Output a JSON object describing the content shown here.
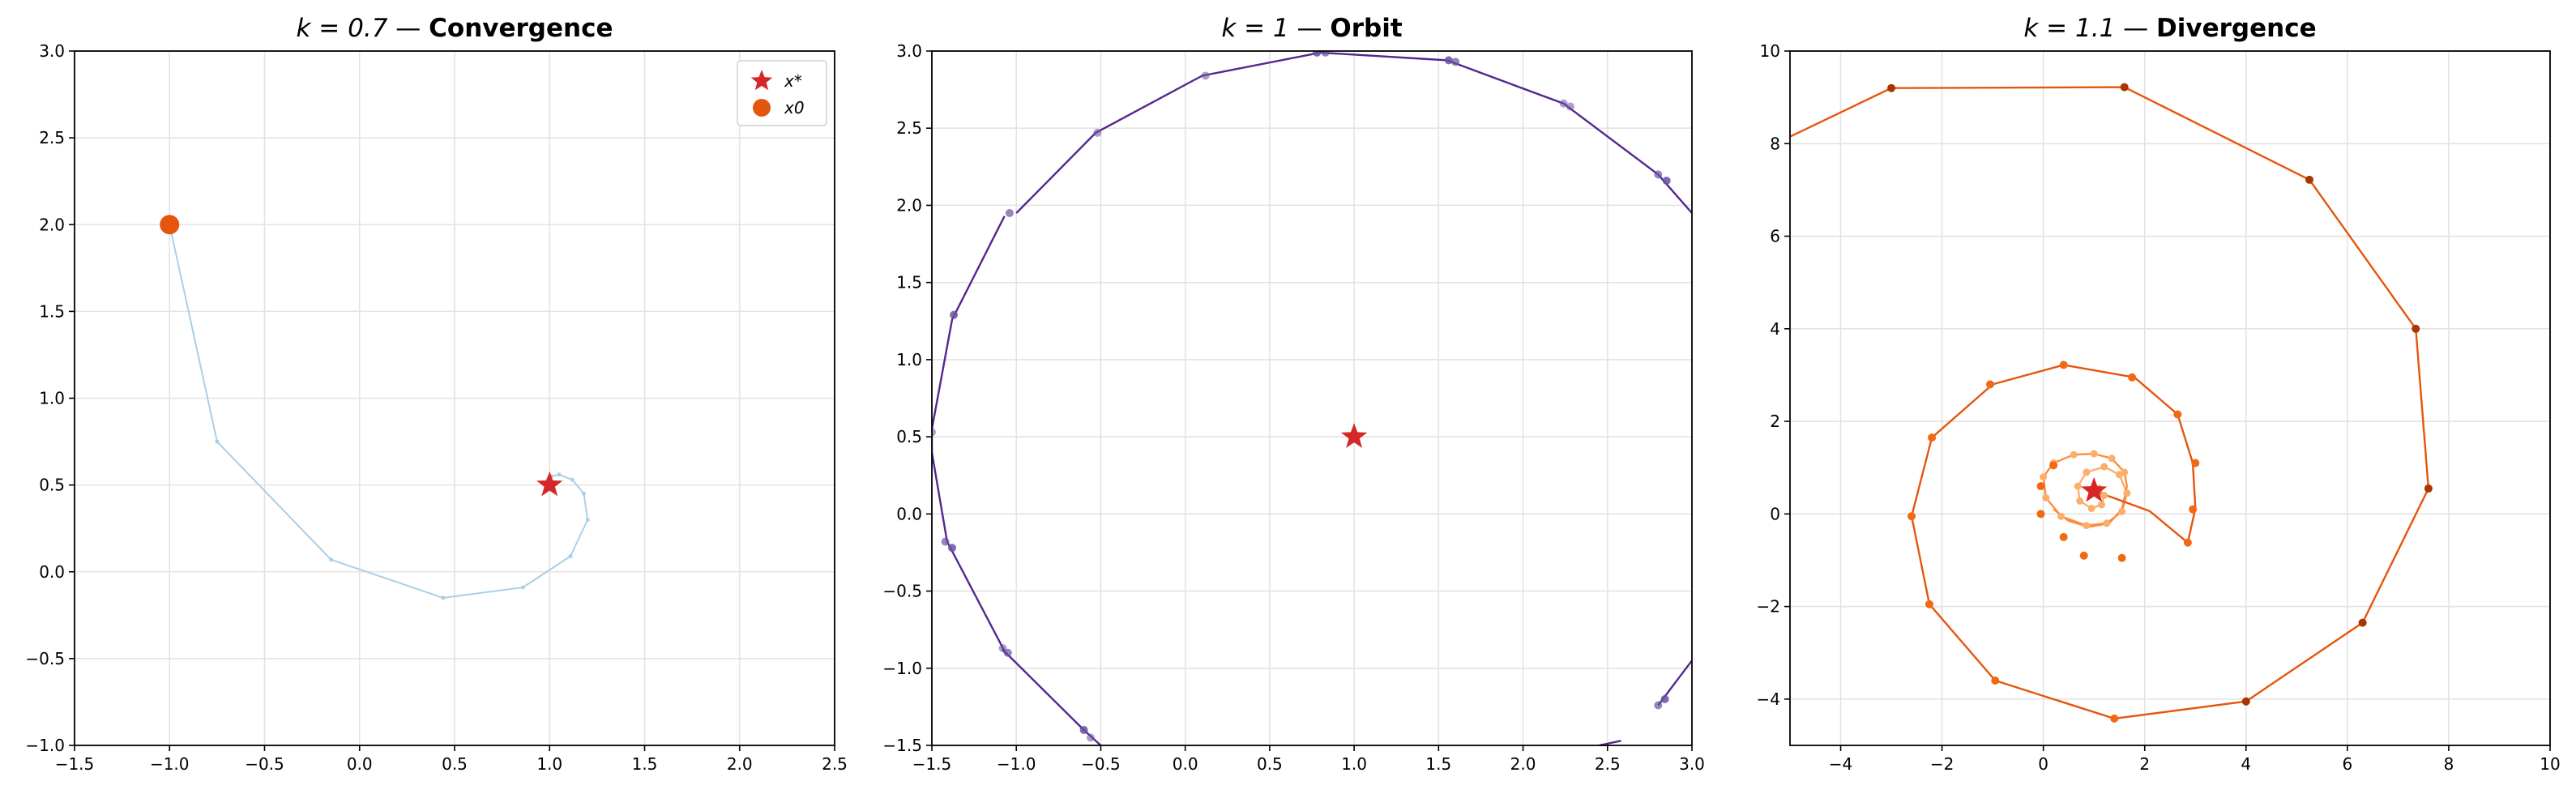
{
  "chart_data": [
    {
      "type": "line",
      "title_math": "k = 0.7",
      "title_sep": " — ",
      "title_bold": "Convergence",
      "xlim": [
        -1.5,
        2.5
      ],
      "ylim": [
        -1.0,
        3.0
      ],
      "xticks": [
        "−1.5",
        "−1.0",
        "−0.5",
        "0.0",
        "0.5",
        "1.0",
        "1.5",
        "2.0",
        "2.5"
      ],
      "yticks": [
        "−1.0",
        "−0.5",
        "0.0",
        "0.5",
        "1.0",
        "1.5",
        "2.0",
        "2.5",
        "3.0"
      ],
      "grid": true,
      "fixed_point": {
        "x": 1.0,
        "y": 0.5
      },
      "start_point": {
        "x": -1.0,
        "y": 2.0
      },
      "legend": {
        "placement": "top-right",
        "star_label": "x*",
        "start_label": "x0"
      },
      "series": [
        {
          "color": "#a9cfe9",
          "points": [
            [
              -1.0,
              2.0
            ],
            [
              -0.75,
              0.75
            ],
            [
              -0.15,
              0.07
            ],
            [
              0.44,
              -0.15
            ],
            [
              0.86,
              -0.09
            ],
            [
              1.11,
              0.09
            ],
            [
              1.2,
              0.3
            ],
            [
              1.18,
              0.45
            ],
            [
              1.12,
              0.53
            ],
            [
              1.05,
              0.56
            ],
            [
              1.01,
              0.55
            ],
            [
              0.99,
              0.53
            ],
            [
              1.0,
              0.5
            ]
          ]
        }
      ],
      "colors": {
        "star": "#d62728",
        "start": "#e6550d"
      }
    },
    {
      "type": "line",
      "title_math": "k = 1",
      "title_sep": " — ",
      "title_bold": "Orbit",
      "xlim": [
        -1.5,
        3.0
      ],
      "ylim": [
        -1.5,
        3.0
      ],
      "xticks": [
        "−1.5",
        "−1.0",
        "−0.5",
        "0.0",
        "0.5",
        "1.0",
        "1.5",
        "2.0",
        "2.5",
        "3.0"
      ],
      "yticks": [
        "−1.5",
        "−1.0",
        "−0.5",
        "0.0",
        "0.5",
        "1.0",
        "1.5",
        "2.0",
        "2.5",
        "3.0"
      ],
      "grid": true,
      "fixed_point": {
        "x": 1.0,
        "y": 0.5
      },
      "series": [
        {
          "color": "#54278f",
          "points": [
            [
              -1.0,
              1.95
            ],
            [
              -0.53,
              2.47
            ],
            [
              0.1,
              2.84
            ],
            [
              0.8,
              2.99
            ],
            [
              1.55,
              2.94
            ],
            [
              2.24,
              2.66
            ],
            [
              2.8,
              2.2
            ],
            [
              3.0,
              1.95
            ]
          ]
        },
        {
          "color": "#54278f",
          "points": [
            [
              -1.07,
              1.93
            ],
            [
              -1.38,
              1.26
            ],
            [
              -1.5,
              0.55
            ],
            [
              -1.5,
              0.4
            ],
            [
              -1.41,
              -0.18
            ],
            [
              -1.39,
              -0.22
            ],
            [
              -1.06,
              -0.91
            ],
            [
              -1.08,
              -0.88
            ],
            [
              -0.6,
              -1.4
            ],
            [
              -0.55,
              -1.45
            ],
            [
              -0.5,
              -1.5
            ]
          ]
        },
        {
          "color": "#54278f",
          "points": [
            [
              2.45,
              -1.5
            ],
            [
              2.58,
              -1.47
            ]
          ]
        },
        {
          "color": "#54278f",
          "points": [
            [
              2.8,
              -1.24
            ],
            [
              3.0,
              -0.95
            ]
          ]
        }
      ],
      "markers": [
        [
          0.12,
          2.84
        ],
        [
          0.83,
          2.99
        ],
        [
          1.56,
          2.94
        ],
        [
          2.24,
          2.66
        ],
        [
          2.8,
          2.2
        ],
        [
          2.85,
          2.16
        ],
        [
          -0.52,
          2.47
        ],
        [
          -1.04,
          1.95
        ],
        [
          -1.37,
          1.29
        ],
        [
          -1.5,
          0.53
        ],
        [
          -1.42,
          -0.18
        ],
        [
          -1.38,
          -0.22
        ],
        [
          -1.08,
          -0.87
        ],
        [
          -1.05,
          -0.9
        ],
        [
          -0.6,
          -1.4
        ],
        [
          -0.56,
          -1.45
        ],
        [
          2.8,
          -1.24
        ],
        [
          2.84,
          -1.2
        ],
        [
          2.28,
          2.64
        ],
        [
          1.6,
          2.93
        ],
        [
          0.78,
          2.99
        ]
      ],
      "colors": {
        "star": "#d62728",
        "marker": "#6a51a3"
      }
    },
    {
      "type": "line",
      "title_math": "k = 1.1",
      "title_sep": " — ",
      "title_bold": "Divergence",
      "xlim": [
        -5,
        10
      ],
      "ylim": [
        -5,
        10
      ],
      "xticks": [
        "−4",
        "−2",
        "0",
        "2",
        "4",
        "6",
        "8",
        "10"
      ],
      "yticks": [
        "−4",
        "−2",
        "0",
        "2",
        "4",
        "6",
        "8",
        "10"
      ],
      "grid": true,
      "fixed_point": {
        "x": 1.0,
        "y": 0.5
      },
      "series": [
        {
          "color": "#fdae6b",
          "points": [
            [
              1.0,
              0.5
            ],
            [
              1.1,
              0.55
            ],
            [
              1.2,
              0.4
            ],
            [
              1.15,
              0.2
            ],
            [
              0.95,
              0.12
            ],
            [
              0.72,
              0.28
            ],
            [
              0.68,
              0.6
            ],
            [
              0.85,
              0.9
            ],
            [
              1.2,
              1.02
            ],
            [
              1.5,
              0.85
            ],
            [
              1.65,
              0.45
            ]
          ]
        },
        {
          "color": "#fd8d3c",
          "points": [
            [
              1.65,
              0.45
            ],
            [
              1.55,
              0.05
            ],
            [
              1.25,
              -0.2
            ],
            [
              0.85,
              -0.25
            ],
            [
              0.35,
              -0.05
            ],
            [
              0.05,
              0.35
            ],
            [
              0.0,
              0.8
            ],
            [
              0.2,
              1.1
            ],
            [
              0.6,
              1.28
            ],
            [
              1.0,
              1.3
            ],
            [
              1.35,
              1.2
            ],
            [
              1.6,
              0.9
            ],
            [
              1.65,
              0.6
            ],
            [
              1.55,
              0.1
            ],
            [
              1.3,
              -0.2
            ],
            [
              0.9,
              -0.28
            ],
            [
              0.5,
              -0.15
            ],
            [
              0.2,
              0.1
            ]
          ]
        },
        {
          "color": "#e6550d",
          "points": [
            [
              1.0,
              0.5
            ],
            [
              2.1,
              0.06
            ],
            [
              2.85,
              -0.62
            ],
            [
              3.0,
              0.12
            ],
            [
              2.95,
              1.1
            ],
            [
              2.65,
              2.15
            ],
            [
              1.8,
              2.95
            ],
            [
              0.4,
              3.22
            ],
            [
              -1.0,
              2.8
            ],
            [
              -2.2,
              1.65
            ],
            [
              -2.6,
              -0.05
            ],
            [
              -2.25,
              -1.95
            ],
            [
              -0.95,
              -3.6
            ],
            [
              1.4,
              -4.42
            ],
            [
              4.0,
              -4.05
            ],
            [
              6.3,
              -2.35
            ],
            [
              7.6,
              0.55
            ],
            [
              7.35,
              4.0
            ],
            [
              5.25,
              7.22
            ],
            [
              1.6,
              9.22
            ],
            [
              -3.0,
              9.2
            ],
            [
              -5.0,
              8.15
            ]
          ]
        }
      ],
      "markers_light": [
        [
          1.0,
          0.5
        ],
        [
          1.1,
          0.55
        ],
        [
          1.2,
          0.4
        ],
        [
          1.15,
          0.2
        ],
        [
          0.95,
          0.12
        ],
        [
          0.72,
          0.28
        ],
        [
          0.68,
          0.6
        ],
        [
          0.85,
          0.9
        ],
        [
          1.2,
          1.02
        ],
        [
          1.5,
          0.85
        ],
        [
          1.65,
          0.45
        ],
        [
          1.55,
          0.05
        ],
        [
          1.25,
          -0.2
        ],
        [
          0.85,
          -0.25
        ],
        [
          0.35,
          -0.05
        ],
        [
          0.05,
          0.35
        ],
        [
          0.0,
          0.8
        ],
        [
          0.2,
          1.1
        ],
        [
          0.6,
          1.28
        ],
        [
          1.0,
          1.3
        ],
        [
          1.35,
          1.2
        ],
        [
          1.6,
          0.9
        ]
      ],
      "markers_mid": [
        [
          0.4,
          -0.5
        ],
        [
          0.8,
          -0.9
        ],
        [
          1.55,
          -0.95
        ],
        [
          2.85,
          -0.62
        ],
        [
          2.95,
          0.1
        ],
        [
          3.0,
          1.1
        ],
        [
          2.65,
          2.15
        ],
        [
          1.75,
          2.95
        ],
        [
          0.4,
          3.22
        ],
        [
          -1.05,
          2.8
        ],
        [
          -2.2,
          1.65
        ],
        [
          -2.6,
          -0.05
        ],
        [
          -2.25,
          -1.95
        ],
        [
          -0.95,
          -3.6
        ],
        [
          1.4,
          -4.42
        ],
        [
          -0.05,
          0.0
        ],
        [
          -0.05,
          0.6
        ],
        [
          0.2,
          1.05
        ]
      ],
      "markers_dark": [
        [
          4.0,
          -4.05
        ],
        [
          6.3,
          -2.35
        ],
        [
          7.6,
          0.55
        ],
        [
          7.35,
          4.0
        ],
        [
          5.25,
          7.22
        ],
        [
          1.6,
          9.22
        ],
        [
          -3.0,
          9.2
        ]
      ],
      "colors": {
        "star": "#d62728",
        "light": "#fdae6b",
        "mid": "#f16913",
        "dark": "#a63603"
      }
    }
  ]
}
